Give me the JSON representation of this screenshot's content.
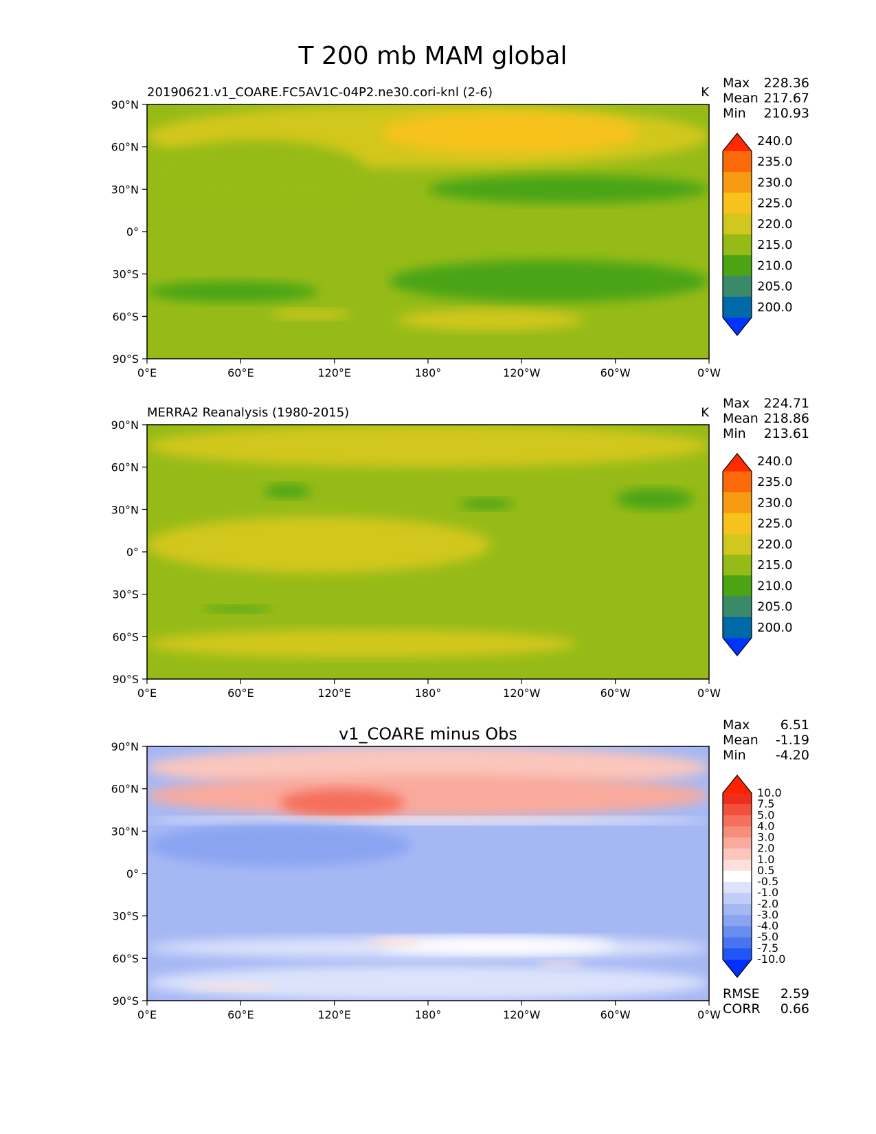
{
  "figure": {
    "title": "T 200 mb MAM global"
  },
  "chart_data": [
    {
      "type": "heatmap",
      "title": "20190621.v1_COARE.FC5AV1C-04P2.ne30.cori-knl (2-6)",
      "units": "K",
      "stats": {
        "max_label": "Max",
        "max": "228.36",
        "mean_label": "Mean",
        "mean": "217.67",
        "min_label": "Min",
        "min": "210.93"
      },
      "xticks": [
        "0°E",
        "60°E",
        "120°E",
        "180°",
        "120°W",
        "60°W",
        "0°W"
      ],
      "yticks": [
        "90°N",
        "60°N",
        "30°N",
        "0°",
        "30°S",
        "60°S",
        "90°S"
      ],
      "xlim": [
        0,
        360
      ],
      "ylim": [
        -90,
        90
      ],
      "colorbar": {
        "levels": [
          "200.0",
          "205.0",
          "210.0",
          "215.0",
          "220.0",
          "225.0",
          "230.0",
          "235.0",
          "240.0"
        ],
        "colors": [
          "#0033ff",
          "#006aa8",
          "#3a8a6a",
          "#4aa414",
          "#96bb18",
          "#d2c71e",
          "#f7c21c",
          "#f89a12",
          "#fb6a0a",
          "#fe2a00"
        ]
      },
      "field": {
        "base_color": "#96bb18",
        "regions": [
          {
            "value": "220-225",
            "color": "#d2c71e",
            "lon": [
              0,
              360
            ],
            "lat": [
              45,
              90
            ]
          },
          {
            "value": "225-230",
            "color": "#f7c21c",
            "lon": [
              150,
              315
            ],
            "lat": [
              55,
              85
            ]
          },
          {
            "value": "215-220",
            "color": "#96bb18",
            "lon": [
              0,
              140
            ],
            "lat": [
              20,
              65
            ]
          },
          {
            "value": "210-215",
            "color": "#4aa414",
            "lon": [
              180,
              360
            ],
            "lat": [
              20,
              40
            ]
          },
          {
            "value": "210-215",
            "color": "#4aa414",
            "lon": [
              0,
              110
            ],
            "lat": [
              -35,
              -50
            ]
          },
          {
            "value": "210-215",
            "color": "#4aa414",
            "lon": [
              155,
              360
            ],
            "lat": [
              -20,
              -50
            ]
          },
          {
            "value": "220-225",
            "color": "#d2c71e",
            "lon": [
              80,
              130
            ],
            "lat": [
              -55,
              -62
            ]
          },
          {
            "value": "220-225",
            "color": "#d2c71e",
            "lon": [
              160,
              280
            ],
            "lat": [
              -55,
              -70
            ]
          }
        ]
      }
    },
    {
      "type": "heatmap",
      "title": "MERRA2 Reanalysis (1980-2015)",
      "units": "K",
      "stats": {
        "max_label": "Max",
        "max": "224.71",
        "mean_label": "Mean",
        "mean": "218.86",
        "min_label": "Min",
        "min": "213.61"
      },
      "xticks": [
        "0°E",
        "60°E",
        "120°E",
        "180°",
        "120°W",
        "60°W",
        "0°W"
      ],
      "yticks": [
        "90°N",
        "60°N",
        "30°N",
        "0°",
        "30°S",
        "60°S",
        "90°S"
      ],
      "xlim": [
        0,
        360
      ],
      "ylim": [
        -90,
        90
      ],
      "colorbar": {
        "levels": [
          "200.0",
          "205.0",
          "210.0",
          "215.0",
          "220.0",
          "225.0",
          "230.0",
          "235.0",
          "240.0"
        ],
        "colors": [
          "#0033ff",
          "#006aa8",
          "#3a8a6a",
          "#4aa414",
          "#96bb18",
          "#d2c71e",
          "#f7c21c",
          "#f89a12",
          "#fb6a0a",
          "#fe2a00"
        ]
      },
      "field": {
        "base_color": "#96bb18",
        "regions": [
          {
            "value": "220-225",
            "color": "#d2c71e",
            "lon": [
              0,
              360
            ],
            "lat": [
              60,
              90
            ]
          },
          {
            "value": "220-225",
            "color": "#d2c71e",
            "lon": [
              0,
              220
            ],
            "lat": [
              -15,
              25
            ]
          },
          {
            "value": "220-225",
            "color": "#d2c71e",
            "lon": [
              0,
              275
            ],
            "lat": [
              -55,
              -75
            ]
          },
          {
            "value": "210-215",
            "color": "#4aa414",
            "lon": [
              75,
              105
            ],
            "lat": [
              38,
              48
            ]
          },
          {
            "value": "210-215",
            "color": "#4aa414",
            "lon": [
              200,
              235
            ],
            "lat": [
              30,
              38
            ]
          },
          {
            "value": "210-215",
            "color": "#4aa414",
            "lon": [
              300,
              350
            ],
            "lat": [
              30,
              45
            ]
          },
          {
            "value": "210-215",
            "color": "#4aa414",
            "lon": [
              35,
              80
            ],
            "lat": [
              -38,
              -43
            ]
          }
        ]
      }
    },
    {
      "type": "heatmap",
      "title": "v1_COARE minus Obs",
      "units": "",
      "stats": {
        "max_label": "Max",
        "max": "6.51",
        "mean_label": "Mean",
        "mean": "-1.19",
        "min_label": "Min",
        "min": "-4.20"
      },
      "metrics": {
        "rmse_label": "RMSE",
        "rmse": "2.59",
        "corr_label": "CORR",
        "corr": "0.66"
      },
      "xticks": [
        "0°E",
        "60°E",
        "120°E",
        "180°",
        "120°W",
        "60°W",
        "0°W"
      ],
      "yticks": [
        "90°N",
        "60°N",
        "30°N",
        "0°",
        "30°S",
        "60°S",
        "90°S"
      ],
      "xlim": [
        0,
        360
      ],
      "ylim": [
        -90,
        90
      ],
      "colorbar": {
        "levels": [
          "-10.0",
          "-7.5",
          "-5.0",
          "-4.0",
          "-3.0",
          "-2.0",
          "-1.0",
          "-0.5",
          "0.5",
          "1.0",
          "2.0",
          "3.0",
          "4.0",
          "5.0",
          "7.5",
          "10.0"
        ],
        "colors": [
          "#0030ff",
          "#2255f5",
          "#4874f0",
          "#6a8ef0",
          "#8aa4f2",
          "#a6b8f4",
          "#c2cdf8",
          "#dde3fb",
          "#ffffff",
          "#fde0dc",
          "#fbc6bc",
          "#f9aa9c",
          "#f78e7c",
          "#f5705c",
          "#f2503c",
          "#ee2e1a",
          "#ff2200"
        ]
      },
      "field": {
        "base_color": "#a6b8f4",
        "regions": [
          {
            "value": "2 to 3",
            "color": "#fbc6bc",
            "lon": [
              0,
              360
            ],
            "lat": [
              60,
              90
            ]
          },
          {
            "value": "3 to 4",
            "color": "#f9aa9c",
            "lon": [
              0,
              360
            ],
            "lat": [
              40,
              70
            ]
          },
          {
            "value": "5 to 7.5",
            "color": "#f5705c",
            "lon": [
              85,
              165
            ],
            "lat": [
              40,
              60
            ]
          },
          {
            "value": "-0.5 to 0.5",
            "color": "#ffffff",
            "lon": [
              0,
              360
            ],
            "lat": [
              35,
              40
            ]
          },
          {
            "value": "-3 to -2",
            "color": "#8aa4f2",
            "lon": [
              0,
              170
            ],
            "lat": [
              5,
              35
            ]
          },
          {
            "value": "-1 to -0.5",
            "color": "#dde3fb",
            "lon": [
              0,
              360
            ],
            "lat": [
              -45,
              -60
            ]
          },
          {
            "value": "-0.5 to 0.5",
            "color": "#ffffff",
            "lon": [
              150,
              300
            ],
            "lat": [
              -45,
              -57
            ]
          },
          {
            "value": "0.5 to 1",
            "color": "#fde0dc",
            "lon": [
              140,
              175
            ],
            "lat": [
              -45,
              -52
            ]
          },
          {
            "value": "0.5 to 1",
            "color": "#fde0dc",
            "lon": [
              250,
              280
            ],
            "lat": [
              -62,
              -67
            ]
          },
          {
            "value": "-1 to -0.5",
            "color": "#dde3fb",
            "lon": [
              0,
              360
            ],
            "lat": [
              -65,
              -90
            ]
          },
          {
            "value": "0.5 to 1",
            "color": "#fde0dc",
            "lon": [
              25,
              85
            ],
            "lat": [
              -78,
              -83
            ]
          }
        ]
      }
    }
  ]
}
